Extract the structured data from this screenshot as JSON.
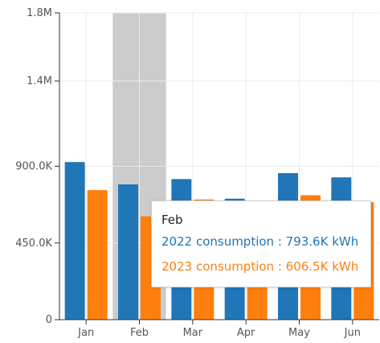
{
  "chart_data": {
    "type": "bar",
    "title": "",
    "xlabel": "",
    "ylabel": "",
    "categories": [
      "Jan",
      "Feb",
      "Mar",
      "Apr",
      "May",
      "Jun"
    ],
    "series": [
      {
        "name": "2022 consumption",
        "values": [
          925000,
          793600,
          825000,
          710000,
          860000,
          835000
        ],
        "color": "#2176b8"
      },
      {
        "name": "2023 consumption",
        "values": [
          760000,
          606500,
          705000,
          690000,
          730000,
          690000
        ],
        "color": "#ff7f0e"
      }
    ],
    "ylim": [
      0,
      1800000
    ],
    "y_ticks": [
      {
        "value": 0,
        "label": "0"
      },
      {
        "value": 450000,
        "label": "450.0K"
      },
      {
        "value": 900000,
        "label": "900.0K"
      },
      {
        "value": 1400000,
        "label": "1.4M"
      },
      {
        "value": 1800000,
        "label": "1.8M"
      }
    ],
    "grid": true,
    "highlighted_category": "Feb",
    "highlight_color": "#cccccc"
  },
  "tooltip": {
    "title": "Feb",
    "row1": "2022 consumption : 793.6K kWh",
    "row2": "2023 consumption : 606.5K kWh",
    "row1_color": "#2176b8",
    "row2_color": "#ff7f0e"
  }
}
